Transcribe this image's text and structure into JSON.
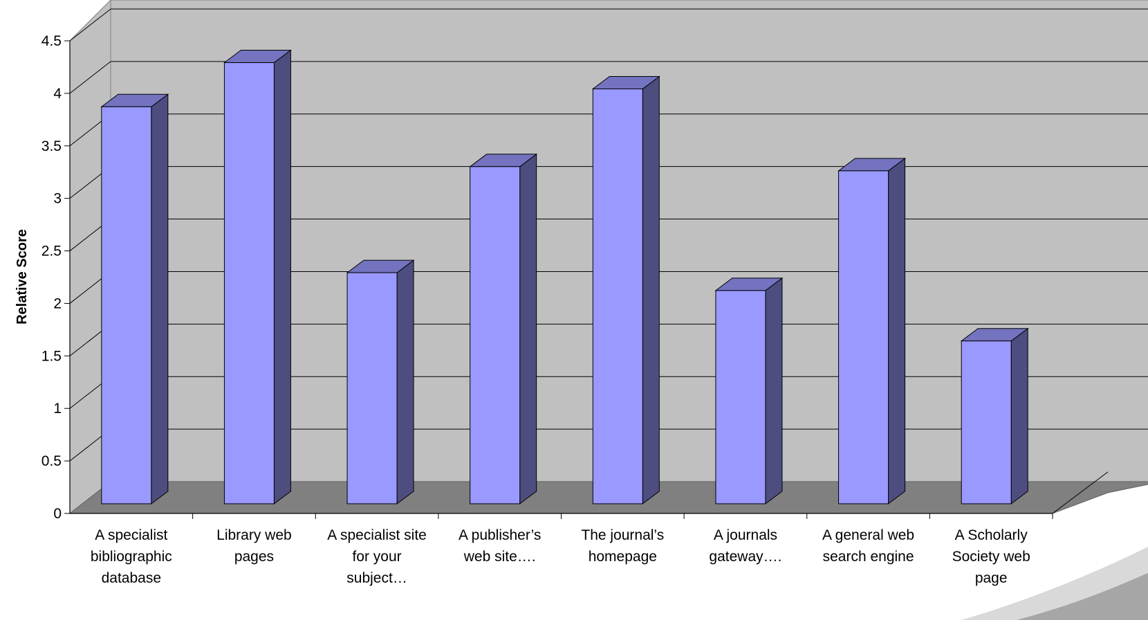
{
  "chart_data": {
    "type": "bar",
    "ylabel": "Relative Score",
    "xlabel": "",
    "ylim": [
      0,
      4.5
    ],
    "yticks": [
      "0",
      "0.5",
      "1",
      "1.5",
      "2",
      "2.5",
      "3",
      "3.5",
      "4",
      "4.5"
    ],
    "categories": [
      [
        "A specialist",
        "bibliographic",
        "database"
      ],
      [
        "Library web",
        "pages"
      ],
      [
        "A specialist site",
        "for your",
        "subject…"
      ],
      [
        "A publisher’s",
        "web site…."
      ],
      [
        "The journal’s",
        "homepage"
      ],
      [
        "A journals",
        "gateway…."
      ],
      [
        "A general web",
        "search engine"
      ],
      [
        "A Scholarly",
        "Society web",
        "page"
      ]
    ],
    "values": [
      3.78,
      4.2,
      2.2,
      3.21,
      3.95,
      2.03,
      3.17,
      1.55
    ],
    "grid": true,
    "legend": "none",
    "colors": {
      "bar_front": "#9999ff",
      "bar_side": "#4d4d80",
      "bar_top": "#7373bf",
      "wall": "#c0c0c0",
      "floor": "#808080",
      "gridline": "#000000"
    }
  }
}
